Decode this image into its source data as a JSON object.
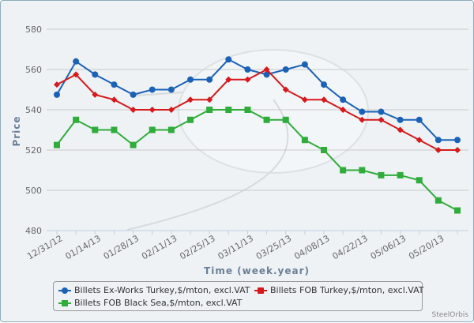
{
  "chart_data": {
    "type": "line",
    "title": "",
    "xlabel": "Time (week.year)",
    "ylabel": "Price",
    "ylim": [
      480,
      580
    ],
    "yticks": [
      480,
      500,
      520,
      540,
      560,
      580
    ],
    "x": [
      "12/31/12",
      "01/07/13",
      "01/14/13",
      "01/21/13",
      "01/28/13",
      "02/04/13",
      "02/11/13",
      "02/18/13",
      "02/25/13",
      "03/04/13",
      "03/11/13",
      "03/18/13",
      "03/25/13",
      "04/01/13",
      "04/08/13",
      "04/15/13",
      "04/22/13",
      "04/29/13",
      "05/06/13",
      "05/13/13",
      "05/20/13",
      "05/27/13"
    ],
    "xtick_labels": [
      "12/31/12",
      "01/14/13",
      "01/28/13",
      "02/11/13",
      "02/25/13",
      "03/11/13",
      "03/25/13",
      "04/08/13",
      "04/22/13",
      "05/06/13",
      "05/20/13"
    ],
    "grid": true,
    "legend_position": "bottom",
    "series": [
      {
        "name": "Billets Ex-Works Turkey,$/mton, excl.VAT",
        "color": "#1a62b8",
        "marker": "circle",
        "values": [
          547.5,
          564,
          557.5,
          552.5,
          547.5,
          550,
          550,
          555,
          555,
          565,
          560,
          557.5,
          560,
          562.5,
          552.5,
          545,
          539,
          539,
          535,
          535,
          525,
          525
        ]
      },
      {
        "name": "Billets FOB Turkey,$/mton, excl.VAT",
        "color": "#d7191c",
        "marker": "diamond",
        "values": [
          552.5,
          557.5,
          547.5,
          545,
          540,
          540,
          540,
          545,
          545,
          555,
          555,
          560,
          550,
          545,
          545,
          540,
          535,
          535,
          530,
          525,
          520,
          520
        ]
      },
      {
        "name": "Billets FOB Black Sea,$/mton, excl.VAT",
        "color": "#2fac3a",
        "marker": "square",
        "values": [
          522.5,
          535,
          530,
          530,
          522.5,
          530,
          530,
          535,
          540,
          540,
          540,
          535,
          535,
          525,
          520,
          510,
          510,
          507.5,
          507.5,
          505,
          495,
          490
        ]
      }
    ]
  },
  "credit": "SteelOrbis"
}
